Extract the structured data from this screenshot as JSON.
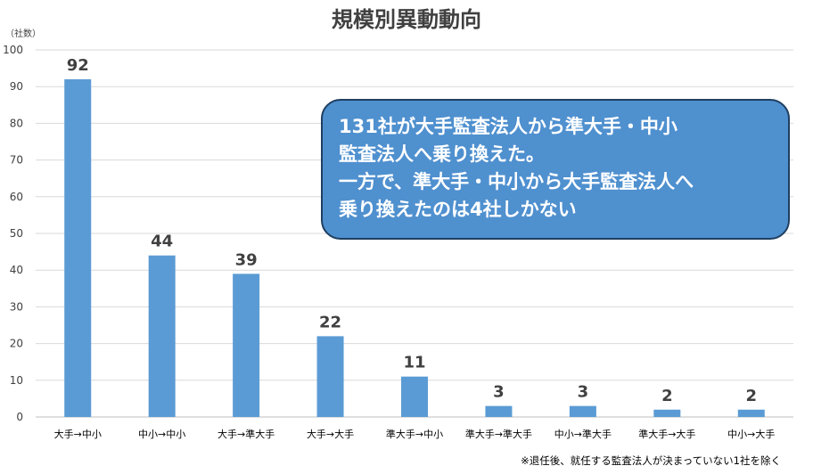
{
  "chart_data": {
    "type": "bar",
    "title": "規模別異動動向",
    "ylabel": "（社数）",
    "xlabel": "",
    "ylim": [
      0,
      100
    ],
    "yticks": [
      0,
      10,
      20,
      30,
      40,
      50,
      60,
      70,
      80,
      90,
      100
    ],
    "categories": [
      "大手→中小",
      "中小→中小",
      "大手→準大手",
      "大手→大手",
      "準大手→中小",
      "準大手→準大手",
      "中小→準大手",
      "準大手→大手",
      "中小→大手"
    ],
    "values": [
      92,
      44,
      39,
      22,
      11,
      3,
      3,
      2,
      2
    ],
    "bar_color": "#5b9bd5",
    "grid": true,
    "legend": "none"
  },
  "callout": {
    "lines": [
      "131社が大手監査法人から準大手・中小",
      "監査法人へ乗り換えた。",
      "一方で、準大手・中小から大手監査法人へ",
      "乗り換えたのは4社しかない"
    ],
    "background": "#4f90cf"
  },
  "footnote": "※退任後、就任する監査法人が決まっていない1社を除く"
}
